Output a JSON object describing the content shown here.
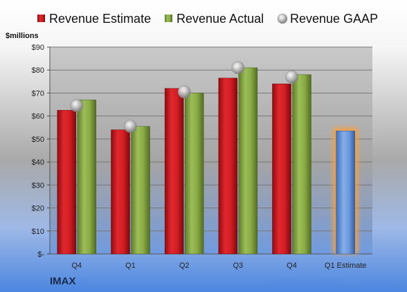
{
  "chart_data": {
    "type": "bar",
    "title": "",
    "ylabel": "$millions",
    "xlabel": "",
    "ylim": [
      0,
      90
    ],
    "y_ticks": [
      "$-",
      "$10",
      "$20",
      "$30",
      "$40",
      "$50",
      "$60",
      "$70",
      "$80",
      "$90"
    ],
    "categories": [
      "Q4",
      "Q1",
      "Q2",
      "Q3",
      "Q4",
      "Q1 Estimate"
    ],
    "series": [
      {
        "name": "Revenue Estimate",
        "type": "bar",
        "color": "#d01f24",
        "values": [
          62.5,
          54,
          72,
          76.5,
          74,
          null
        ]
      },
      {
        "name": "Revenue Actual",
        "type": "bar",
        "color": "#8fb04a",
        "values": [
          67,
          55.5,
          70,
          81,
          78,
          null
        ]
      },
      {
        "name": "Revenue GAAP",
        "type": "marker",
        "color": "#b8b8b8",
        "values": [
          64.5,
          55.5,
          70.5,
          81,
          77,
          null
        ]
      },
      {
        "name": "Q1 Estimate",
        "type": "bar",
        "color": "#5b8fd6",
        "highlight": "#f5a040",
        "values": [
          null,
          null,
          null,
          null,
          null,
          53.5
        ]
      }
    ],
    "grid": true,
    "legend_position": "top"
  },
  "brand": "IMAX"
}
